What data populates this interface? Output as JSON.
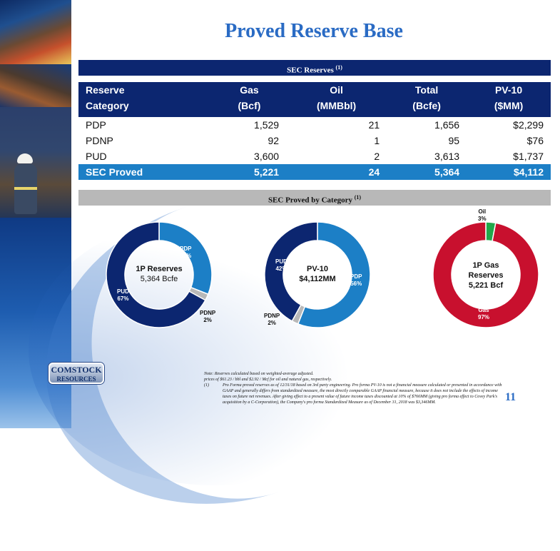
{
  "slide": {
    "title": "Proved Reserve Base",
    "page_number": "11"
  },
  "reserves_band": {
    "label": "SEC Reserves",
    "sup": "(1)"
  },
  "table": {
    "headers": [
      {
        "line1": "Reserve",
        "line2": "Category"
      },
      {
        "line1": "Gas",
        "line2": "(Bcf)"
      },
      {
        "line1": "Oil",
        "line2": "(MMBbl)"
      },
      {
        "line1": "Total",
        "line2": "(Bcfe)"
      },
      {
        "line1": "PV-10",
        "line2": "($MM)"
      }
    ],
    "rows": [
      {
        "category": "PDP",
        "gas": "1,529",
        "oil": "21",
        "total": "1,656",
        "pv10": "$2,299"
      },
      {
        "category": "PDNP",
        "gas": "92",
        "oil": "1",
        "total": "95",
        "pv10": "$76"
      },
      {
        "category": "PUD",
        "gas": "3,600",
        "oil": "2",
        "total": "3,613",
        "pv10": "$1,737"
      }
    ],
    "total_row": {
      "category": "SEC Proved",
      "gas": "5,221",
      "oil": "24",
      "total": "5,364",
      "pv10": "$4,112"
    }
  },
  "category_band": {
    "label": "SEC Proved by Category",
    "sup": "(1)"
  },
  "colors": {
    "navy": "#0c2670",
    "blue": "#1c7fc6",
    "gray": "#b8b8b8",
    "red": "#c8102e",
    "green": "#22a84a",
    "title_blue": "#2a6bc4"
  },
  "chart_data": [
    {
      "type": "pie",
      "center_text": [
        "1P Reserves",
        "5,364 Bcfe"
      ],
      "categories": [
        "PDP",
        "PDNP",
        "PUD"
      ],
      "values": [
        31,
        2,
        67
      ],
      "value_labels": [
        "31%",
        "2%",
        "67%"
      ],
      "colors": [
        "#1c7fc6",
        "#b8b8b8",
        "#0c2670"
      ]
    },
    {
      "type": "pie",
      "center_text": [
        "PV-10",
        "$4,112MM"
      ],
      "categories": [
        "PDP",
        "PDNP",
        "PUD"
      ],
      "values": [
        56,
        2,
        42
      ],
      "value_labels": [
        "56%",
        "2%",
        "42%"
      ],
      "colors": [
        "#1c7fc6",
        "#b8b8b8",
        "#0c2670"
      ]
    },
    {
      "type": "pie",
      "center_text": [
        "1P Gas",
        "Reserves",
        "5,221 Bcf"
      ],
      "categories": [
        "Oil",
        "Gas"
      ],
      "values": [
        3,
        97
      ],
      "value_labels": [
        "3%",
        "97%"
      ],
      "colors": [
        "#22a84a",
        "#c8102e"
      ]
    }
  ],
  "logo": {
    "line1": "COMSTOCK",
    "line2": "RESOURCES"
  },
  "notes": {
    "line1": "Note: Reserves calculated based on weighted-average adjusted.",
    "line2": "prices of $61.23 / bbl and $2.92 / Mcf for oil and natural gas, respectively.",
    "footnote_marker": "(1)",
    "footnote": "Pro Forma proved reserves as of 12/31/18 based on 3rd party engineering. Pro forma PV-10 is not a financial measure calculated or presented in accordance with GAAP and generally differs from standardized measure, the most directly comparable GAAP financial measure, because it does not include the effects of income taxes on future net revenues. After giving effect to a present value of future income taxes discounted at 10% of $766MM (giving pro forma effect to Covey Park's acquisition by a C-Corporation), the Company's pro forma Standardized Measure as of December 31, 2018 was $3,346MM."
  }
}
